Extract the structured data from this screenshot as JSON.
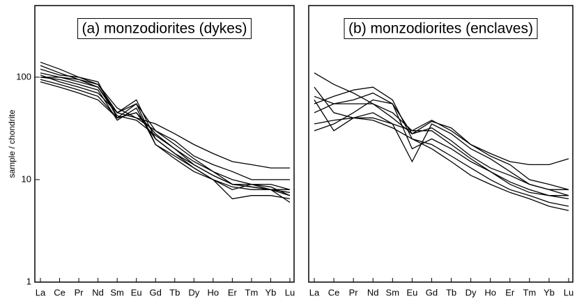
{
  "chart_data": [
    {
      "type": "line",
      "title": "(a) monzodiorites (dykes)",
      "y_label": "sample / chondrite",
      "categories": [
        "La",
        "Ce",
        "Pr",
        "Nd",
        "Sm",
        "Eu",
        "Gd",
        "Tb",
        "Dy",
        "Ho",
        "Er",
        "Tm",
        "Yb",
        "Lu"
      ],
      "log_scale": true,
      "ylim": [
        1,
        500
      ],
      "yticks": [
        1,
        10,
        100
      ],
      "series": [
        {
          "color": "#000000",
          "values": [
            140,
            120,
            100,
            85,
            50,
            40,
            35,
            28,
            22,
            18,
            15,
            14,
            13,
            13
          ]
        },
        {
          "color": "#000000",
          "values": [
            130,
            110,
            95,
            85,
            45,
            55,
            30,
            24,
            17,
            14,
            12,
            10,
            10,
            10
          ]
        },
        {
          "color": "#000000",
          "values": [
            120,
            105,
            100,
            90,
            40,
            45,
            28,
            20,
            15,
            12,
            10,
            9,
            9,
            8
          ]
        },
        {
          "color": "#000000",
          "values": [
            110,
            100,
            90,
            80,
            45,
            60,
            25,
            18,
            14,
            11,
            9,
            8.5,
            8,
            8
          ]
        },
        {
          "color": "#000000",
          "values": [
            100,
            95,
            85,
            75,
            38,
            50,
            22,
            16,
            12,
            10,
            8,
            9,
            8.5,
            7
          ]
        },
        {
          "color": "#000000",
          "values": [
            95,
            85,
            75,
            65,
            40,
            55,
            22,
            17,
            13,
            10,
            8.5,
            8,
            8,
            7.5
          ]
        },
        {
          "color": "#000000",
          "values": [
            90,
            80,
            70,
            60,
            40,
            45,
            25,
            18,
            13,
            10,
            6.5,
            7,
            7,
            6.5
          ]
        },
        {
          "color": "#000000",
          "values": [
            105,
            90,
            80,
            70,
            45,
            40,
            30,
            22,
            16,
            12,
            9,
            8.5,
            8,
            7
          ]
        },
        {
          "color": "#000000",
          "values": [
            100,
            100,
            95,
            80,
            42,
            38,
            27,
            20,
            14,
            11,
            9,
            9,
            8,
            6
          ]
        }
      ]
    },
    {
      "type": "line",
      "title": "(b) monzodiorites (enclaves)",
      "categories": [
        "La",
        "Ce",
        "Pr",
        "Nd",
        "Sm",
        "Eu",
        "Gd",
        "Tb",
        "Dy",
        "Ho",
        "Er",
        "Tm",
        "Yb",
        "Lu"
      ],
      "log_scale": true,
      "ylim": [
        1,
        500
      ],
      "series": [
        {
          "color": "#000000",
          "values": [
            110,
            85,
            70,
            55,
            40,
            28,
            32,
            24,
            17,
            13,
            11,
            9,
            8,
            8
          ]
        },
        {
          "color": "#000000",
          "values": [
            80,
            45,
            40,
            45,
            35,
            15,
            35,
            28,
            20,
            16,
            12,
            9,
            8,
            7
          ]
        },
        {
          "color": "#000000",
          "values": [
            60,
            30,
            40,
            40,
            35,
            30,
            38,
            30,
            22,
            18,
            15,
            14,
            14,
            16
          ]
        },
        {
          "color": "#000000",
          "values": [
            55,
            65,
            75,
            80,
            60,
            25,
            22,
            17,
            13,
            10,
            8,
            7,
            6,
            5.5
          ]
        },
        {
          "color": "#000000",
          "values": [
            45,
            55,
            60,
            70,
            55,
            28,
            37,
            32,
            22,
            17,
            14,
            10,
            9,
            8
          ]
        },
        {
          "color": "#000000",
          "values": [
            35,
            38,
            40,
            38,
            32,
            25,
            20,
            15,
            11,
            9,
            7.5,
            6.5,
            5.5,
            5
          ]
        },
        {
          "color": "#000000",
          "values": [
            30,
            35,
            45,
            60,
            55,
            20,
            25,
            20,
            15,
            12,
            9.5,
            8,
            7,
            7
          ]
        },
        {
          "color": "#000000",
          "values": [
            65,
            55,
            55,
            55,
            45,
            30,
            30,
            22,
            16,
            12,
            9,
            7.5,
            7,
            6.5
          ]
        }
      ]
    }
  ]
}
